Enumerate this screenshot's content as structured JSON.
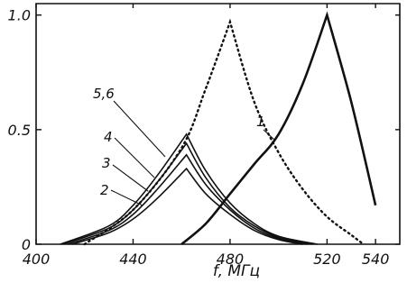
{
  "chart_data": {
    "type": "line",
    "xlabel": "f, МГц",
    "ylabel": "",
    "xlim": [
      400,
      550
    ],
    "ylim": [
      0,
      1.05
    ],
    "x_ticks": [
      400,
      440,
      480,
      520,
      540
    ],
    "x_tick_labels": [
      "400",
      "440",
      "480",
      "520",
      "540"
    ],
    "y_ticks": [
      0,
      0.5,
      1.0
    ],
    "y_tick_labels": [
      "0",
      "0.5",
      "1.0"
    ],
    "grid": false,
    "legend": "none",
    "series": [
      {
        "name": "1",
        "style": "solid-bold",
        "points": [
          [
            460,
            0
          ],
          [
            470,
            0.09
          ],
          [
            480,
            0.22
          ],
          [
            490,
            0.35
          ],
          [
            500,
            0.48
          ],
          [
            510,
            0.7
          ],
          [
            520,
            1.0
          ],
          [
            530,
            0.62
          ],
          [
            540,
            0.17
          ]
        ]
      },
      {
        "name": "",
        "style": "dotted",
        "points": [
          [
            420,
            0
          ],
          [
            440,
            0.15
          ],
          [
            460,
            0.42
          ],
          [
            470,
            0.68
          ],
          [
            480,
            0.97
          ],
          [
            490,
            0.62
          ],
          [
            500,
            0.4
          ],
          [
            510,
            0.24
          ],
          [
            520,
            0.12
          ],
          [
            530,
            0.04
          ],
          [
            535,
            0
          ]
        ]
      },
      {
        "name": "2",
        "style": "solid",
        "points": [
          [
            415,
            0
          ],
          [
            430,
            0.05
          ],
          [
            440,
            0.11
          ],
          [
            450,
            0.2
          ],
          [
            462,
            0.33
          ],
          [
            470,
            0.22
          ],
          [
            480,
            0.13
          ],
          [
            490,
            0.06
          ],
          [
            500,
            0.02
          ],
          [
            510,
            0
          ]
        ]
      },
      {
        "name": "3",
        "style": "solid",
        "points": [
          [
            413,
            0
          ],
          [
            430,
            0.06
          ],
          [
            440,
            0.13
          ],
          [
            450,
            0.24
          ],
          [
            462,
            0.39
          ],
          [
            470,
            0.26
          ],
          [
            480,
            0.15
          ],
          [
            490,
            0.07
          ],
          [
            500,
            0.025
          ],
          [
            512,
            0
          ]
        ]
      },
      {
        "name": "4",
        "style": "solid",
        "points": [
          [
            411,
            0
          ],
          [
            430,
            0.07
          ],
          [
            440,
            0.15
          ],
          [
            450,
            0.27
          ],
          [
            462,
            0.44
          ],
          [
            470,
            0.29
          ],
          [
            480,
            0.16
          ],
          [
            490,
            0.08
          ],
          [
            500,
            0.03
          ],
          [
            514,
            0
          ]
        ]
      },
      {
        "name": "5,6",
        "style": "solid",
        "points": [
          [
            410,
            0
          ],
          [
            430,
            0.08
          ],
          [
            440,
            0.17
          ],
          [
            450,
            0.3
          ],
          [
            462,
            0.48
          ],
          [
            470,
            0.32
          ],
          [
            480,
            0.18
          ],
          [
            490,
            0.09
          ],
          [
            500,
            0.035
          ],
          [
            516,
            0
          ]
        ]
      }
    ],
    "curve_labels": [
      "1",
      "2",
      "3",
      "4",
      "5,6"
    ]
  }
}
